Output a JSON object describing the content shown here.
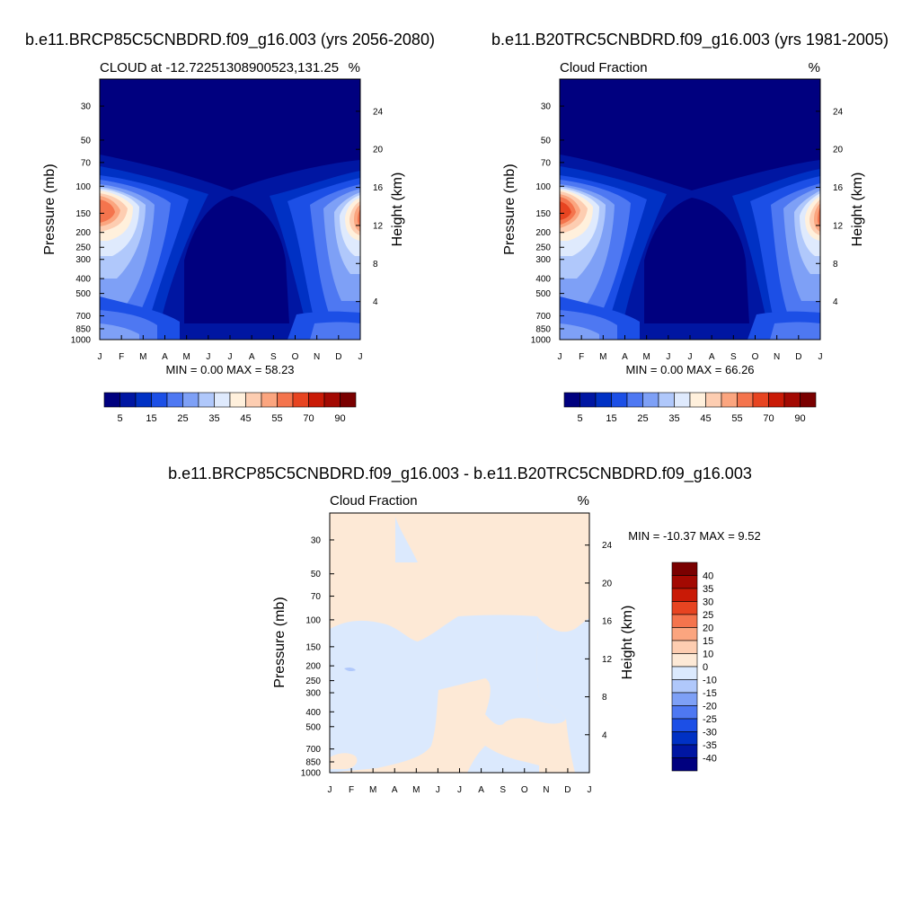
{
  "panels": [
    {
      "main_title": "b.e11.BRCP85C5CNBDRD.f09_g16.003 (yrs 2056-2080)",
      "left_title": "CLOUD at -12.72251308900523,131.25",
      "right_title": "%",
      "stats": "MIN =   0.00 MAX =  58.23"
    },
    {
      "main_title": "b.e11.B20TRC5CNBDRD.f09_g16.003 (yrs 1981-2005)",
      "left_title": "Cloud Fraction",
      "right_title": "%",
      "stats": "MIN =   0.00 MAX =  66.26"
    },
    {
      "main_title": "b.e11.BRCP85C5CNBDRD.f09_g16.003 - b.e11.B20TRC5CNBDRD.f09_g16.003",
      "left_title": "Cloud Fraction",
      "right_title": "%",
      "stats": "MIN = -10.37 MAX =    9.52"
    }
  ],
  "chart_data": [
    {
      "type": "heatmap",
      "title": "b.e11.BRCP85C5CNBDRD.f09_g16.003 (yrs 2056-2080)",
      "xlabel": "",
      "ylabel": "Pressure (mb)",
      "y2label": "Height (km)",
      "x_ticks": [
        "J",
        "F",
        "M",
        "A",
        "M",
        "J",
        "J",
        "A",
        "S",
        "O",
        "N",
        "D",
        "J"
      ],
      "y_ticks": [
        30,
        50,
        70,
        100,
        150,
        200,
        250,
        300,
        400,
        500,
        700,
        850,
        1000
      ],
      "y2_ticks": [
        24,
        20,
        16,
        12,
        8,
        4
      ],
      "ylim": [
        1000,
        20
      ],
      "colorbar": {
        "orientation": "horizontal",
        "labels": [
          "5",
          "15",
          "25",
          "35",
          "45",
          "55",
          "70",
          "90"
        ],
        "colors": [
          "#00007f",
          "#0016a2",
          "#0031c4",
          "#1c4fe6",
          "#4e78f2",
          "#7ea0f6",
          "#b0c8fb",
          "#dfeafd",
          "#fff0dc",
          "#fdcdb1",
          "#fba57f",
          "#f4744d",
          "#e74421",
          "#c91a06",
          "#a30902",
          "#7a0000"
        ]
      },
      "min": 0.0,
      "max": 58.23
    },
    {
      "type": "heatmap",
      "title": "b.e11.B20TRC5CNBDRD.f09_g16.003 (yrs 1981-2005)",
      "xlabel": "",
      "ylabel": "Pressure (mb)",
      "y2label": "Height (km)",
      "x_ticks": [
        "J",
        "F",
        "M",
        "A",
        "M",
        "J",
        "J",
        "A",
        "S",
        "O",
        "N",
        "D",
        "J"
      ],
      "y_ticks": [
        30,
        50,
        70,
        100,
        150,
        200,
        250,
        300,
        400,
        500,
        700,
        850,
        1000
      ],
      "y2_ticks": [
        24,
        20,
        16,
        12,
        8,
        4
      ],
      "ylim": [
        1000,
        20
      ],
      "colorbar": {
        "orientation": "horizontal",
        "labels": [
          "5",
          "15",
          "25",
          "35",
          "45",
          "55",
          "70",
          "90"
        ],
        "colors": [
          "#00007f",
          "#0016a2",
          "#0031c4",
          "#1c4fe6",
          "#4e78f2",
          "#7ea0f6",
          "#b0c8fb",
          "#dfeafd",
          "#fff0dc",
          "#fdcdb1",
          "#fba57f",
          "#f4744d",
          "#e74421",
          "#c91a06",
          "#a30902",
          "#7a0000"
        ]
      },
      "min": 0.0,
      "max": 66.26
    },
    {
      "type": "heatmap",
      "title": "b.e11.BRCP85C5CNBDRD.f09_g16.003 - b.e11.B20TRC5CNBDRD.f09_g16.003",
      "xlabel": "",
      "ylabel": "Pressure (mb)",
      "y2label": "Height (km)",
      "x_ticks": [
        "J",
        "F",
        "M",
        "A",
        "M",
        "J",
        "J",
        "A",
        "S",
        "O",
        "N",
        "D",
        "J"
      ],
      "y_ticks": [
        30,
        50,
        70,
        100,
        150,
        200,
        250,
        300,
        400,
        500,
        700,
        850,
        1000
      ],
      "y2_ticks": [
        24,
        20,
        16,
        12,
        8,
        4
      ],
      "ylim": [
        1000,
        20
      ],
      "colorbar": {
        "orientation": "vertical",
        "labels": [
          "40",
          "35",
          "30",
          "25",
          "20",
          "15",
          "10",
          "0",
          "-10",
          "-15",
          "-20",
          "-25",
          "-30",
          "-35",
          "-40"
        ],
        "colors": [
          "#7a0000",
          "#a30902",
          "#c91a06",
          "#e74421",
          "#f4744d",
          "#fba57f",
          "#fdcdb1",
          "#fde9d6",
          "#dbe9fd",
          "#b0c8fb",
          "#7ea0f6",
          "#4e78f2",
          "#1c4fe6",
          "#0031c4",
          "#0016a2",
          "#00007f"
        ]
      },
      "min": -10.37,
      "max": 9.52
    }
  ]
}
